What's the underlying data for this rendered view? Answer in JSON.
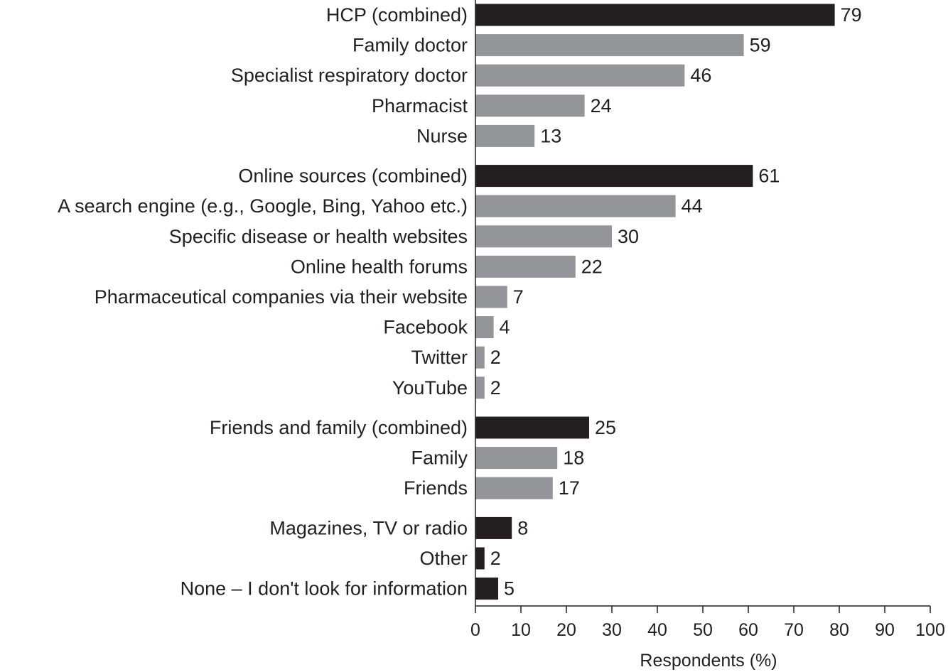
{
  "chart_data": {
    "type": "bar",
    "orientation": "horizontal",
    "xlabel": "Respondents (%)",
    "ylabel": "",
    "xlim": [
      0,
      100
    ],
    "xticks": [
      0,
      10,
      20,
      30,
      40,
      50,
      60,
      70,
      80,
      90,
      100
    ],
    "colors": {
      "combined": "#231f20",
      "detail": "#939598"
    },
    "grid": false,
    "groups": [
      {
        "items": [
          {
            "label": "HCP (combined)",
            "value": 79,
            "kind": "combined"
          },
          {
            "label": "Family doctor",
            "value": 59,
            "kind": "detail"
          },
          {
            "label": "Specialist respiratory doctor",
            "value": 46,
            "kind": "detail"
          },
          {
            "label": "Pharmacist",
            "value": 24,
            "kind": "detail"
          },
          {
            "label": "Nurse",
            "value": 13,
            "kind": "detail"
          }
        ]
      },
      {
        "items": [
          {
            "label": "Online sources (combined)",
            "value": 61,
            "kind": "combined"
          },
          {
            "label": "A search engine (e.g., Google, Bing, Yahoo etc.)",
            "value": 44,
            "kind": "detail"
          },
          {
            "label": "Specific disease or health websites",
            "value": 30,
            "kind": "detail"
          },
          {
            "label": "Online health forums",
            "value": 22,
            "kind": "detail"
          },
          {
            "label": "Pharmaceutical companies via their website",
            "value": 7,
            "kind": "detail"
          },
          {
            "label": "Facebook",
            "value": 4,
            "kind": "detail"
          },
          {
            "label": "Twitter",
            "value": 2,
            "kind": "detail"
          },
          {
            "label": "YouTube",
            "value": 2,
            "kind": "detail"
          }
        ]
      },
      {
        "items": [
          {
            "label": "Friends and family (combined)",
            "value": 25,
            "kind": "combined"
          },
          {
            "label": "Family",
            "value": 18,
            "kind": "detail"
          },
          {
            "label": "Friends",
            "value": 17,
            "kind": "detail"
          }
        ]
      },
      {
        "items": [
          {
            "label": "Magazines, TV or radio",
            "value": 8,
            "kind": "combined"
          },
          {
            "label": "Other",
            "value": 2,
            "kind": "combined"
          },
          {
            "label": "None – I don't look for information",
            "value": 5,
            "kind": "combined"
          }
        ]
      }
    ]
  }
}
